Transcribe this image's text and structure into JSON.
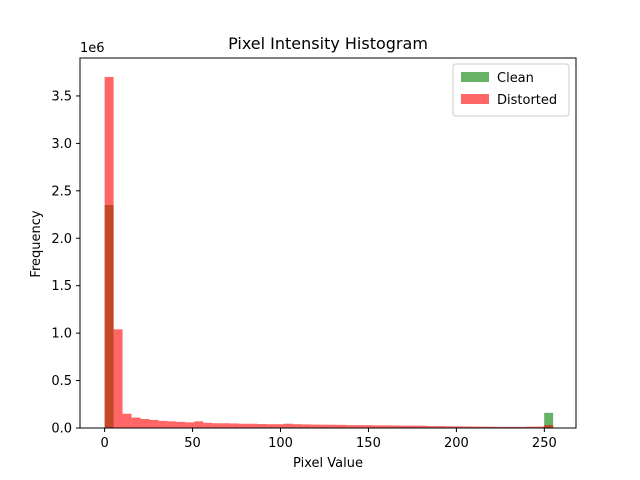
{
  "chart_data": {
    "type": "bar",
    "title": "Pixel Intensity Histogram",
    "xlabel": "Pixel Value",
    "ylabel": "Frequency",
    "y_offset_label": "1e6",
    "xlim": [
      -14,
      268
    ],
    "ylim": [
      0,
      3.9
    ],
    "bin_width": 5.1,
    "x_ticks": [
      0,
      50,
      100,
      150,
      200,
      250
    ],
    "x_tick_labels": [
      "0",
      "50",
      "100",
      "150",
      "200",
      "250"
    ],
    "y_ticks": [
      0,
      0.5,
      1.0,
      1.5,
      2.0,
      2.5,
      3.0,
      3.5
    ],
    "y_tick_labels": [
      "0.0",
      "0.5",
      "1.0",
      "1.5",
      "2.0",
      "2.5",
      "3.0",
      "3.5"
    ],
    "legend_position": "top-right",
    "grid": false,
    "series": [
      {
        "name": "Clean",
        "color": "#008000",
        "opacity": 0.6,
        "bin_starts": [
          0,
          249.9
        ],
        "values": [
          2.35,
          0.16
        ]
      },
      {
        "name": "Distorted",
        "color": "#ff0000",
        "opacity": 0.6,
        "bin_starts": [
          0,
          5.1,
          10.2,
          15.3,
          20.4,
          25.5,
          30.6,
          35.7,
          40.8,
          45.9,
          51.0,
          56.1,
          61.2,
          66.3,
          71.4,
          76.5,
          81.6,
          86.7,
          91.8,
          96.9,
          102.0,
          107.1,
          112.2,
          117.3,
          122.4,
          127.5,
          132.6,
          137.7,
          142.8,
          147.9,
          153.0,
          158.1,
          163.2,
          168.3,
          173.4,
          178.5,
          183.6,
          188.7,
          193.8,
          198.9,
          204.0,
          209.1,
          214.2,
          219.3,
          224.4,
          229.5,
          234.6,
          239.7,
          244.8,
          249.9
        ],
        "values": [
          3.7,
          1.04,
          0.15,
          0.11,
          0.095,
          0.085,
          0.075,
          0.07,
          0.065,
          0.06,
          0.07,
          0.055,
          0.05,
          0.05,
          0.048,
          0.045,
          0.045,
          0.042,
          0.04,
          0.04,
          0.045,
          0.04,
          0.038,
          0.036,
          0.035,
          0.034,
          0.033,
          0.03,
          0.03,
          0.03,
          0.028,
          0.028,
          0.026,
          0.025,
          0.025,
          0.024,
          0.02,
          0.02,
          0.018,
          0.017,
          0.016,
          0.015,
          0.014,
          0.013,
          0.012,
          0.012,
          0.012,
          0.014,
          0.015,
          0.03
        ]
      }
    ]
  }
}
